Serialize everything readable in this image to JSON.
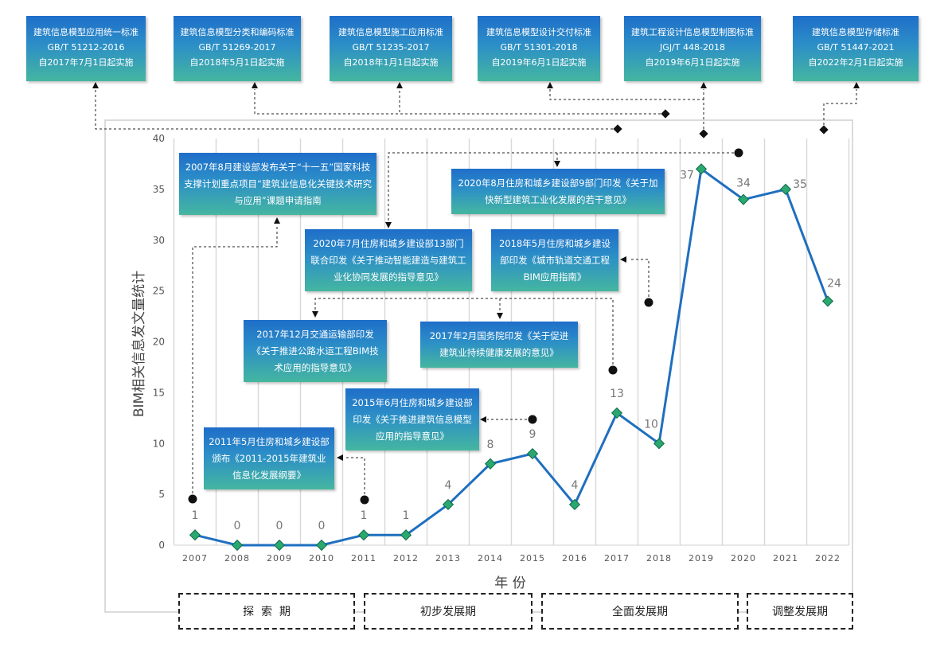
{
  "standards": [
    {
      "name": "建筑信息模型应用统一标准",
      "code": "GB/T 51212-2016",
      "date": "自2017年7月1日起实施"
    },
    {
      "name": "建筑信息模型分类和编码标准",
      "code": "GB/T 51269-2017",
      "date": "自2018年5月1日起实施"
    },
    {
      "name": "建筑信息模型施工应用标准",
      "code": "GB/T 51235-2017",
      "date": "自2018年1月1日起实施"
    },
    {
      "name": "建筑信息模型设计交付标准",
      "code": "GB/T 51301-2018",
      "date": "自2019年6月1日起实施"
    },
    {
      "name": "建筑工程设计信息模型制图标准",
      "code": "JGJ/T 448-2018",
      "date": "自2019年6月1日起实施"
    },
    {
      "name": "建筑信息模型存储标准",
      "code": "GB/T 51447-2021",
      "date": "自2022年2月1日起实施"
    }
  ],
  "events": [
    {
      "text": "2007年8月建设部发布关于“十一五”国家科技支撑计划重点项目“建筑业信息化关键技术研究与应用”课题申请指南"
    },
    {
      "text": "2020年8月住房和城乡建设部9部门印发《关于加快新型建筑工业化发展的若干意见》"
    },
    {
      "text": "2020年7月住房和城乡建设部13部门联合印发《关于推动智能建造与建筑工业化协同发展的指导意见》"
    },
    {
      "text": "2018年5月住房和城乡建设部印发《城市轨道交通工程BIM应用指南》"
    },
    {
      "text": "2017年12月交通运输部印发《关于推进公路水运工程BIM技术应用的指导意见》"
    },
    {
      "text": "2017年2月国务院印发《关于促进建筑业持续健康发展的意见》"
    },
    {
      "text": "2015年6月住房和城乡建设部印发《关于推进建筑信息模型应用的指导意见》"
    },
    {
      "text": "2011年5月住房和城乡建设部颁布《2011-2015年建筑业信息化发展纲要》"
    }
  ],
  "phases": [
    "探  索  期",
    "初步发展期",
    "全面发展期",
    "调整发展期"
  ],
  "chart_data": {
    "type": "line",
    "xlabel": "年 份",
    "ylabel": "BIM相关信息发文量统计",
    "ylim": [
      0,
      40
    ],
    "yticks": [
      0,
      5,
      10,
      15,
      20,
      25,
      30,
      35,
      40
    ],
    "categories": [
      "2007",
      "2008",
      "2009",
      "2010",
      "2011",
      "2012",
      "2013",
      "2014",
      "2015",
      "2016",
      "2017",
      "2018",
      "2019",
      "2020",
      "2021",
      "2022"
    ],
    "values": [
      1,
      0,
      0,
      0,
      1,
      1,
      4,
      8,
      9,
      4,
      13,
      10,
      37,
      34,
      35,
      24
    ],
    "line_color": "#1f6fbf",
    "marker_color": "#2aa870",
    "grid": "vertical"
  }
}
